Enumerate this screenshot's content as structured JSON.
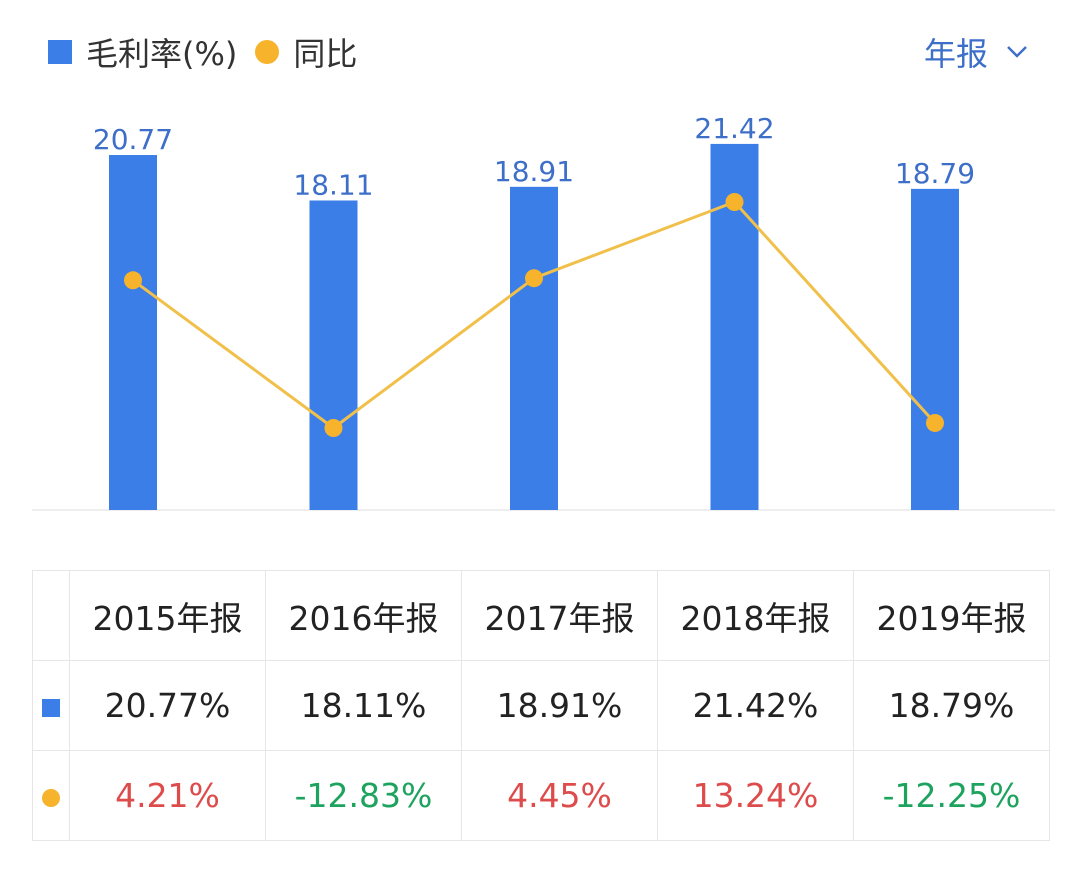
{
  "legend": {
    "bar_label": "毛利率(%)",
    "line_label": "同比"
  },
  "period_selector": {
    "label": "年报"
  },
  "colors": {
    "bar": "#3b7ee8",
    "line": "#f0c04a",
    "dot": "#f7b32b",
    "label": "#3d6fc9",
    "up": "#dd4b4b",
    "down": "#1ea35e",
    "axis": "#e8e8e8"
  },
  "chart_data": {
    "type": "bar",
    "categories": [
      "2015年报",
      "2016年报",
      "2017年报",
      "2018年报",
      "2019年报"
    ],
    "series": [
      {
        "name": "毛利率(%)",
        "type": "bar",
        "values": [
          20.77,
          18.11,
          18.91,
          21.42,
          18.79
        ],
        "labels": [
          "20.77",
          "18.11",
          "18.91",
          "21.42",
          "18.79"
        ]
      },
      {
        "name": "同比",
        "type": "line",
        "values": [
          4.21,
          -12.83,
          4.45,
          13.24,
          -12.25
        ]
      }
    ],
    "ylim": [
      0,
      22
    ]
  },
  "table": {
    "headers": [
      "2015年报",
      "2016年报",
      "2017年报",
      "2018年报",
      "2019年报"
    ],
    "gross_margin_row": [
      "20.77%",
      "18.11%",
      "18.91%",
      "21.42%",
      "18.79%"
    ],
    "yoy_row": [
      "4.21%",
      "-12.83%",
      "4.45%",
      "13.24%",
      "-12.25%"
    ]
  }
}
